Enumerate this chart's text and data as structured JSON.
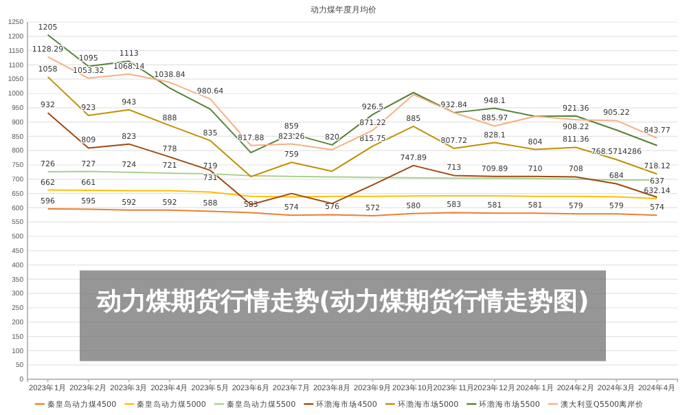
{
  "chart_data": {
    "type": "line",
    "title": "动力煤年度月均价",
    "categories": [
      "2023年1月",
      "2023年2月",
      "2023年3月",
      "2023年4月",
      "2023年5月",
      "2023年6月",
      "2023年7月",
      "2023年8月",
      "2023年9月",
      "2023年10月",
      "2023年11月",
      "2023年12月",
      "2024年1月",
      "2024年2月",
      "2024年3月",
      "2024年4月"
    ],
    "series": [
      {
        "name": "秦皇岛动力煤4500",
        "color": "#ed7d31",
        "values": [
          596,
          595,
          592,
          592,
          588,
          583,
          574,
          576,
          572,
          580,
          583,
          581,
          581,
          579,
          579,
          574
        ],
        "value_labels": [
          "596",
          "595",
          "592",
          "592",
          "588",
          "583",
          "574",
          "576",
          "572",
          "580",
          "583",
          "581",
          "581",
          "579",
          "579",
          "574"
        ]
      },
      {
        "name": "秦皇岛动力煤5000",
        "color": "#ffc000",
        "values": [
          662,
          661,
          660,
          660,
          655,
          640,
          638,
          640,
          640,
          641,
          642,
          642,
          640,
          640,
          638,
          632.14
        ],
        "value_labels": [
          "662",
          "661",
          null,
          null,
          null,
          null,
          null,
          null,
          null,
          null,
          null,
          null,
          null,
          null,
          null,
          "632.14"
        ]
      },
      {
        "name": "秦皇岛动力煤5500",
        "color": "#a9d18e",
        "values": [
          726,
          727,
          724,
          721,
          719,
          712,
          710,
          708,
          706,
          705,
          704,
          703,
          702,
          700,
          697,
          697
        ],
        "value_labels": [
          "726",
          "727",
          "724",
          "721",
          "719",
          null,
          null,
          null,
          null,
          null,
          null,
          null,
          null,
          null,
          null,
          null
        ]
      },
      {
        "name": "环渤海市场4500",
        "color": "#9e480e",
        "values": [
          932,
          809,
          823,
          778,
          731,
          611,
          650,
          615,
          680,
          747.89,
          713,
          709.89,
          710,
          708,
          684,
          637
        ],
        "value_labels": [
          "932",
          "809",
          "823",
          "778",
          "731",
          null,
          null,
          null,
          null,
          "747.89",
          "713",
          "709.89",
          "710",
          "708",
          "684",
          "637"
        ]
      },
      {
        "name": "环渤海市场5000",
        "color": "#bf9000",
        "values": [
          1058,
          923,
          943,
          888,
          835,
          709,
          759,
          728,
          815.75,
          885,
          807.72,
          828.1,
          804,
          811.36,
          768.5714286,
          718.12
        ],
        "value_labels": [
          "1058",
          "923",
          "943",
          "888",
          "835",
          null,
          "759",
          null,
          "815.75",
          "885",
          "807.72",
          "828.1",
          "804",
          "811.36",
          "768.5714286",
          "718.12"
        ]
      },
      {
        "name": "环渤海市场5500",
        "color": "#548235",
        "values": [
          1205,
          1095,
          1113,
          1019,
          945,
          793,
          859,
          820,
          926.5,
          1003,
          933,
          948.1,
          920,
          921.36,
          872,
          818
        ],
        "value_labels": [
          "1205",
          "1095",
          "1113",
          null,
          null,
          null,
          "859",
          "820",
          "926.5",
          null,
          null,
          "948.1",
          null,
          "921.36",
          null,
          null
        ]
      },
      {
        "name": "澳大利亚Q5500离岸价",
        "color": "#f4b183",
        "values": [
          1128.29,
          1053.32,
          1068.14,
          1038.84,
          980.64,
          817.88,
          823.26,
          803,
          871.22,
          996,
          932.84,
          885.97,
          920,
          908.22,
          905.22,
          843.77
        ],
        "value_labels": [
          "1128.29",
          "1053.32",
          "1068.14",
          "1038.84",
          "980.64",
          "817.88",
          "823.26",
          null,
          "871.22",
          null,
          "932.84",
          "885.97",
          null,
          "908.22",
          "905.22",
          "843.77"
        ]
      }
    ],
    "ylim": [
      0,
      1250
    ],
    "yticks": [
      0,
      50,
      100,
      150,
      200,
      250,
      300,
      350,
      400,
      450,
      500,
      550,
      600,
      650,
      700,
      750,
      800,
      850,
      900,
      950,
      1000,
      1050,
      1100,
      1150,
      1200,
      1250
    ],
    "grid": "y",
    "legend": "bottom",
    "annotations": [
      "动力煤期货行情走势(动力煤期货行情走势图)"
    ]
  }
}
